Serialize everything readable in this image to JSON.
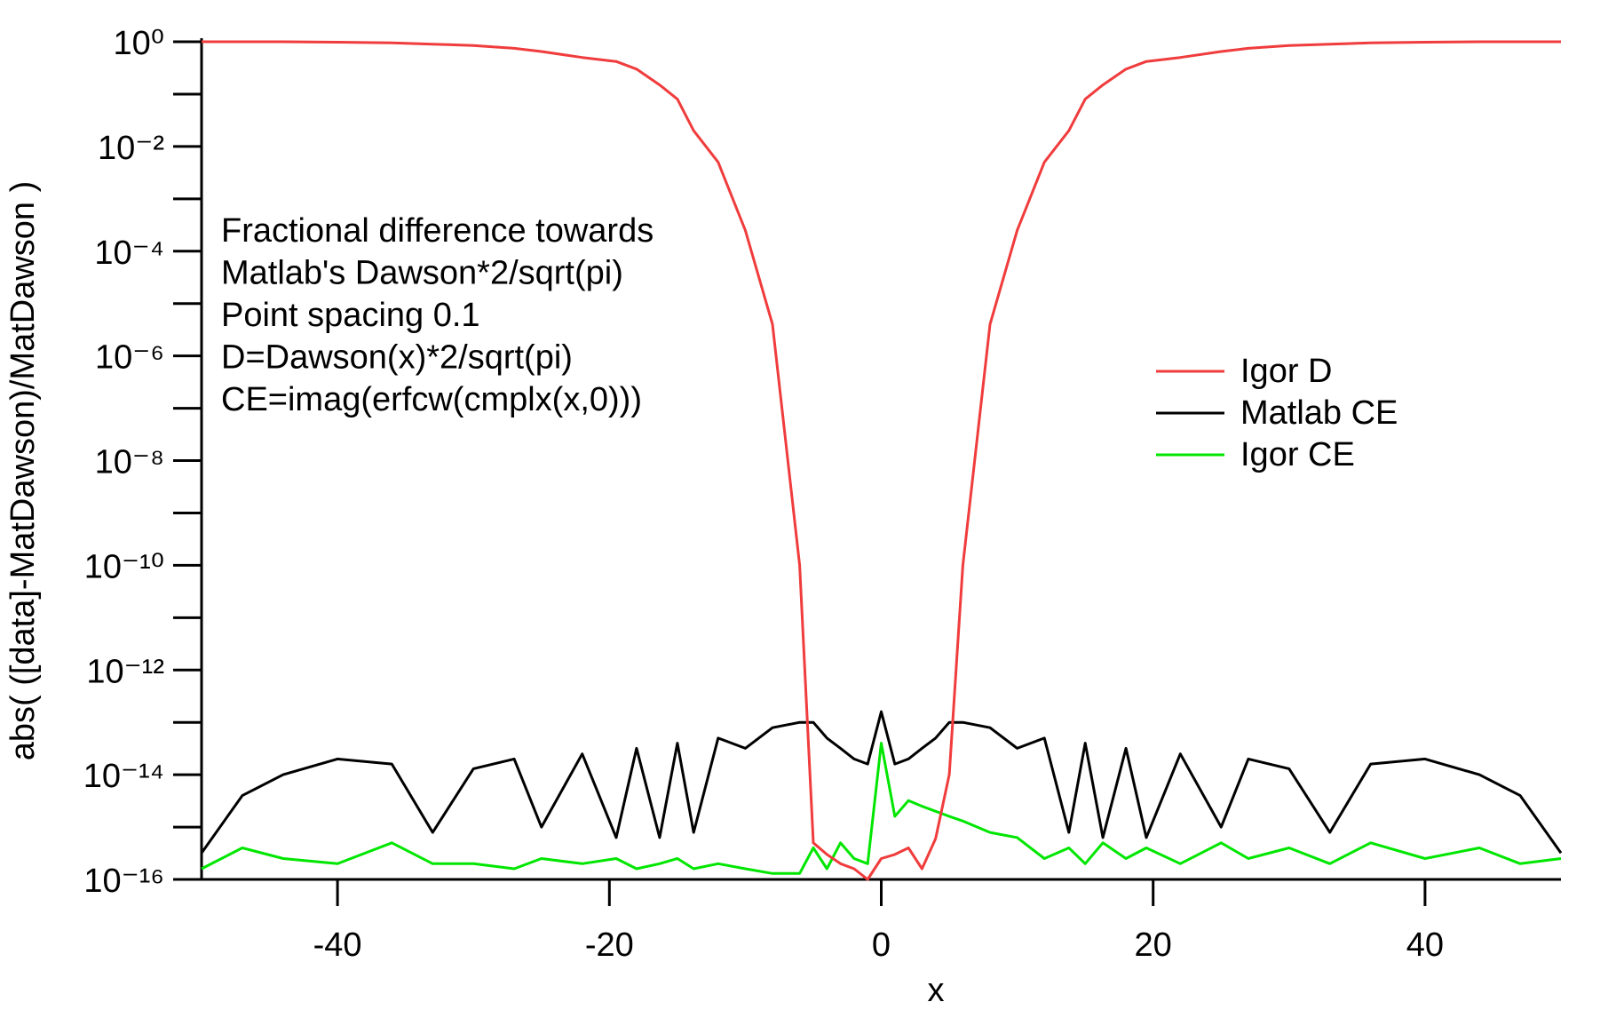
{
  "chart_data": {
    "type": "line",
    "y_label": "abs( ([data]-MatDawson)/MatDawson )",
    "x_label": "x",
    "annotation": [
      "Fractional difference towards",
      "Matlab's Dawson*2/sqrt(pi)",
      "Point spacing 0.1",
      "D=Dawson(x)*2/sqrt(pi)",
      "CE=imag(erfcw(cmplx(x,0)))"
    ],
    "y_scale": "log",
    "legend": "right",
    "xlim": [
      -50,
      50
    ],
    "xticks": [
      -40,
      -20,
      0,
      20,
      40
    ],
    "ylim": [
      1e-16,
      1
    ],
    "yticks": [
      {
        "value": 1,
        "label": "10⁰"
      },
      {
        "value": 0.01,
        "label": "10⁻²"
      },
      {
        "value": 0.0001,
        "label": "10⁻⁴"
      },
      {
        "value": 1e-06,
        "label": "10⁻⁶"
      },
      {
        "value": 1e-08,
        "label": "10⁻⁸"
      },
      {
        "value": 1e-10,
        "label": "10⁻¹⁰"
      },
      {
        "value": 1e-12,
        "label": "10⁻¹²"
      },
      {
        "value": 1e-14,
        "label": "10⁻¹⁴"
      },
      {
        "value": 1e-16,
        "label": "10⁻¹⁶"
      }
    ],
    "yminorticks": [
      0.1,
      0.001,
      1e-05,
      1e-07,
      1e-09,
      1e-11,
      1e-13,
      1e-15
    ],
    "x": [
      -50,
      -47,
      -44,
      -40,
      -36,
      -33,
      -30,
      -27,
      -25,
      -22,
      -19.5,
      -18,
      -16.3,
      -15,
      -13.8,
      -12,
      -10,
      -8,
      -6,
      -5,
      -4,
      -3,
      -2,
      -1,
      0,
      1,
      2,
      3,
      4,
      5,
      6,
      8,
      10,
      12,
      13.8,
      15,
      16.3,
      18,
      19.5,
      22,
      25,
      27,
      30,
      33,
      36,
      40,
      44,
      47,
      50
    ],
    "series": [
      {
        "name": "Igor D",
        "color": "#f03c3c",
        "values": [
          1,
          1,
          1,
          0.98,
          0.95,
          0.9,
          0.85,
          0.75,
          0.65,
          0.5,
          0.42,
          0.3,
          0.15,
          0.08,
          0.02,
          0.005,
          0.00025,
          4e-06,
          1e-10,
          5e-16,
          3e-16,
          2e-16,
          1.6e-16,
          1e-16,
          2.5e-16,
          3e-16,
          4e-16,
          1.6e-16,
          6e-16,
          1e-14,
          1e-10,
          4e-06,
          0.00025,
          0.005,
          0.02,
          0.08,
          0.15,
          0.3,
          0.42,
          0.5,
          0.65,
          0.75,
          0.85,
          0.9,
          0.95,
          0.98,
          1,
          1,
          1
        ]
      },
      {
        "name": "Matlab CE",
        "color": "#000000",
        "values": [
          3.2e-16,
          4e-15,
          1e-14,
          2e-14,
          1.6e-14,
          7.9e-16,
          1.3e-14,
          2e-14,
          1e-15,
          2.5e-14,
          6.3e-16,
          3.2e-14,
          6.3e-16,
          4e-14,
          7.9e-16,
          5e-14,
          3.2e-14,
          7.9e-14,
          1e-13,
          1e-13,
          5e-14,
          3.2e-14,
          2e-14,
          1.6e-14,
          1.6e-13,
          1.6e-14,
          2e-14,
          3.2e-14,
          5e-14,
          1e-13,
          1e-13,
          7.9e-14,
          3.2e-14,
          5e-14,
          7.9e-16,
          4e-14,
          6.3e-16,
          3.2e-14,
          6.3e-16,
          2.5e-14,
          1e-15,
          2e-14,
          1.3e-14,
          7.9e-16,
          1.6e-14,
          2e-14,
          1e-14,
          4e-15,
          3.2e-16
        ]
      },
      {
        "name": "Igor CE",
        "color": "#00e600",
        "values": [
          1.6e-16,
          4e-16,
          2.5e-16,
          2e-16,
          5e-16,
          2e-16,
          2e-16,
          1.6e-16,
          2.5e-16,
          2e-16,
          2.5e-16,
          1.6e-16,
          2e-16,
          2.5e-16,
          1.6e-16,
          2e-16,
          1.6e-16,
          1.3e-16,
          1.3e-16,
          4e-16,
          1.6e-16,
          5e-16,
          2.5e-16,
          2e-16,
          4e-14,
          1.6e-15,
          3.2e-15,
          2.5e-15,
          2e-15,
          1.6e-15,
          1.3e-15,
          7.9e-16,
          6.3e-16,
          2.5e-16,
          4e-16,
          2e-16,
          5e-16,
          2.5e-16,
          4e-16,
          2e-16,
          5e-16,
          2.5e-16,
          4e-16,
          2e-16,
          5e-16,
          2.5e-16,
          4e-16,
          2e-16,
          2.5e-16
        ]
      }
    ]
  }
}
